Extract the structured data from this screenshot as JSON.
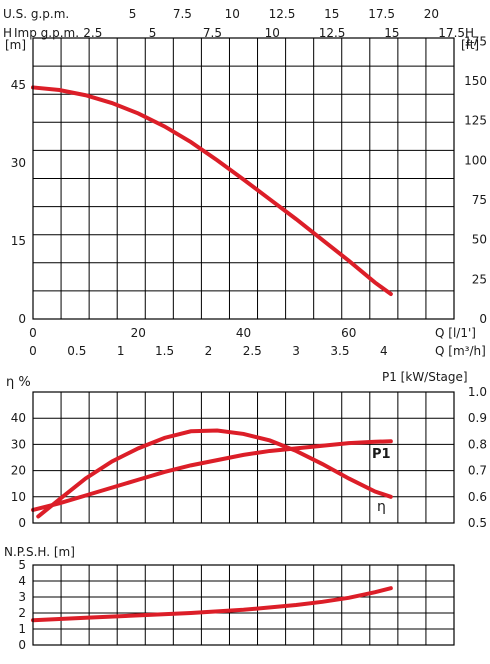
{
  "colors": {
    "curve": "#dc1e28",
    "grid": "#000000",
    "text": "#1a1a1a"
  },
  "chart_data": [
    {
      "id": "head",
      "type": "line",
      "title": "",
      "top_scales": [
        {
          "label": "U.S. g.p.m.",
          "ticks": [
            "5",
            "7.5",
            "10",
            "12.5",
            "15",
            "17.5",
            "20"
          ]
        },
        {
          "label": "Imp g.p.m.",
          "ticks": [
            "2.5",
            "5",
            "7.5",
            "10",
            "12.5",
            "15",
            "17.5"
          ]
        }
      ],
      "ylabel": "H [m]",
      "y2label": "H [ft]",
      "xlabel": "Q [l/1']",
      "x2label": "Q [m³/h]",
      "xlim": [
        0,
        80
      ],
      "ylim": [
        0,
        54
      ],
      "yticks": [
        "0",
        "15",
        "30",
        "45"
      ],
      "y2ticks": [
        "0",
        "25",
        "50",
        "75",
        "100",
        "125",
        "150",
        "175"
      ],
      "xticks": [
        "0",
        "20",
        "40",
        "60"
      ],
      "x2ticks": [
        "0",
        "0.5",
        "1",
        "1.5",
        "2",
        "2.5",
        "3",
        "3.5",
        "4"
      ],
      "grid": true,
      "series": [
        {
          "x": [
            0,
            5,
            10,
            15,
            20,
            25,
            30,
            35,
            40,
            45,
            50,
            55,
            60,
            65,
            68
          ],
          "y": [
            44.5,
            44,
            43,
            41.5,
            39.5,
            37,
            34,
            30.5,
            26.8,
            23,
            19.2,
            15.2,
            11.2,
            7,
            4.8
          ]
        }
      ]
    },
    {
      "id": "efficiency_power",
      "type": "line",
      "ylabel": "η %",
      "y2label": "P1 [kW/Stage]",
      "xlim": [
        0,
        80
      ],
      "ylim": [
        0,
        50
      ],
      "yticks": [
        "0",
        "10",
        "20",
        "30",
        "40"
      ],
      "y2lim": [
        0.5,
        1.0
      ],
      "y2ticks": [
        "0.5",
        "0.6",
        "0.7",
        "0.8",
        "0.9",
        "1.0"
      ],
      "grid": true,
      "series": [
        {
          "name": "η",
          "axis": "left",
          "x": [
            1,
            5,
            10,
            15,
            20,
            25,
            30,
            35,
            40,
            45,
            50,
            55,
            60,
            65,
            68
          ],
          "y": [
            2.5,
            9,
            17,
            23.5,
            28.5,
            32.5,
            35,
            35.3,
            34,
            31.5,
            27.5,
            22.5,
            17,
            12,
            10
          ]
        },
        {
          "name": "P1",
          "axis": "right",
          "x": [
            0,
            5,
            10,
            15,
            20,
            25,
            30,
            35,
            40,
            45,
            50,
            55,
            60,
            65,
            68
          ],
          "y": [
            0.55,
            0.575,
            0.605,
            0.635,
            0.665,
            0.695,
            0.72,
            0.74,
            0.76,
            0.775,
            0.785,
            0.795,
            0.805,
            0.81,
            0.812
          ]
        }
      ]
    },
    {
      "id": "npsh",
      "type": "line",
      "ylabel": "N.P.S.H. [m]",
      "xlim": [
        0,
        80
      ],
      "ylim": [
        0,
        5
      ],
      "yticks": [
        "0",
        "1",
        "2",
        "3",
        "4",
        "5"
      ],
      "grid": true,
      "series": [
        {
          "x": [
            0,
            10,
            20,
            30,
            40,
            50,
            55,
            60,
            65,
            68
          ],
          "y": [
            1.55,
            1.7,
            1.85,
            2.0,
            2.2,
            2.5,
            2.7,
            2.95,
            3.3,
            3.55
          ]
        }
      ]
    }
  ]
}
